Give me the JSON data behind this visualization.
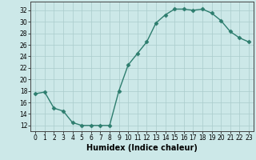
{
  "x": [
    0,
    1,
    2,
    3,
    4,
    5,
    6,
    7,
    8,
    9,
    10,
    11,
    12,
    13,
    14,
    15,
    16,
    17,
    18,
    19,
    20,
    21,
    22,
    23
  ],
  "y": [
    17.5,
    17.8,
    15.0,
    14.5,
    12.5,
    12.0,
    12.0,
    12.0,
    12.0,
    18.0,
    22.5,
    24.5,
    26.5,
    29.8,
    31.2,
    32.2,
    32.2,
    32.0,
    32.2,
    31.5,
    30.2,
    28.3,
    27.2,
    26.5
  ],
  "line_color": "#2d7d6e",
  "marker": "D",
  "markersize": 2.5,
  "linewidth": 1.0,
  "bg_color": "#cce8e8",
  "grid_color": "#aacccc",
  "xlabel": "Humidex (Indice chaleur)",
  "xlabel_fontsize": 7,
  "ylabel_ticks": [
    12,
    14,
    16,
    18,
    20,
    22,
    24,
    26,
    28,
    30,
    32
  ],
  "ylim": [
    11,
    33.5
  ],
  "xlim": [
    -0.5,
    23.5
  ],
  "xticks": [
    0,
    1,
    2,
    3,
    4,
    5,
    6,
    7,
    8,
    9,
    10,
    11,
    12,
    13,
    14,
    15,
    16,
    17,
    18,
    19,
    20,
    21,
    22,
    23
  ],
  "tick_fontsize": 5.5
}
